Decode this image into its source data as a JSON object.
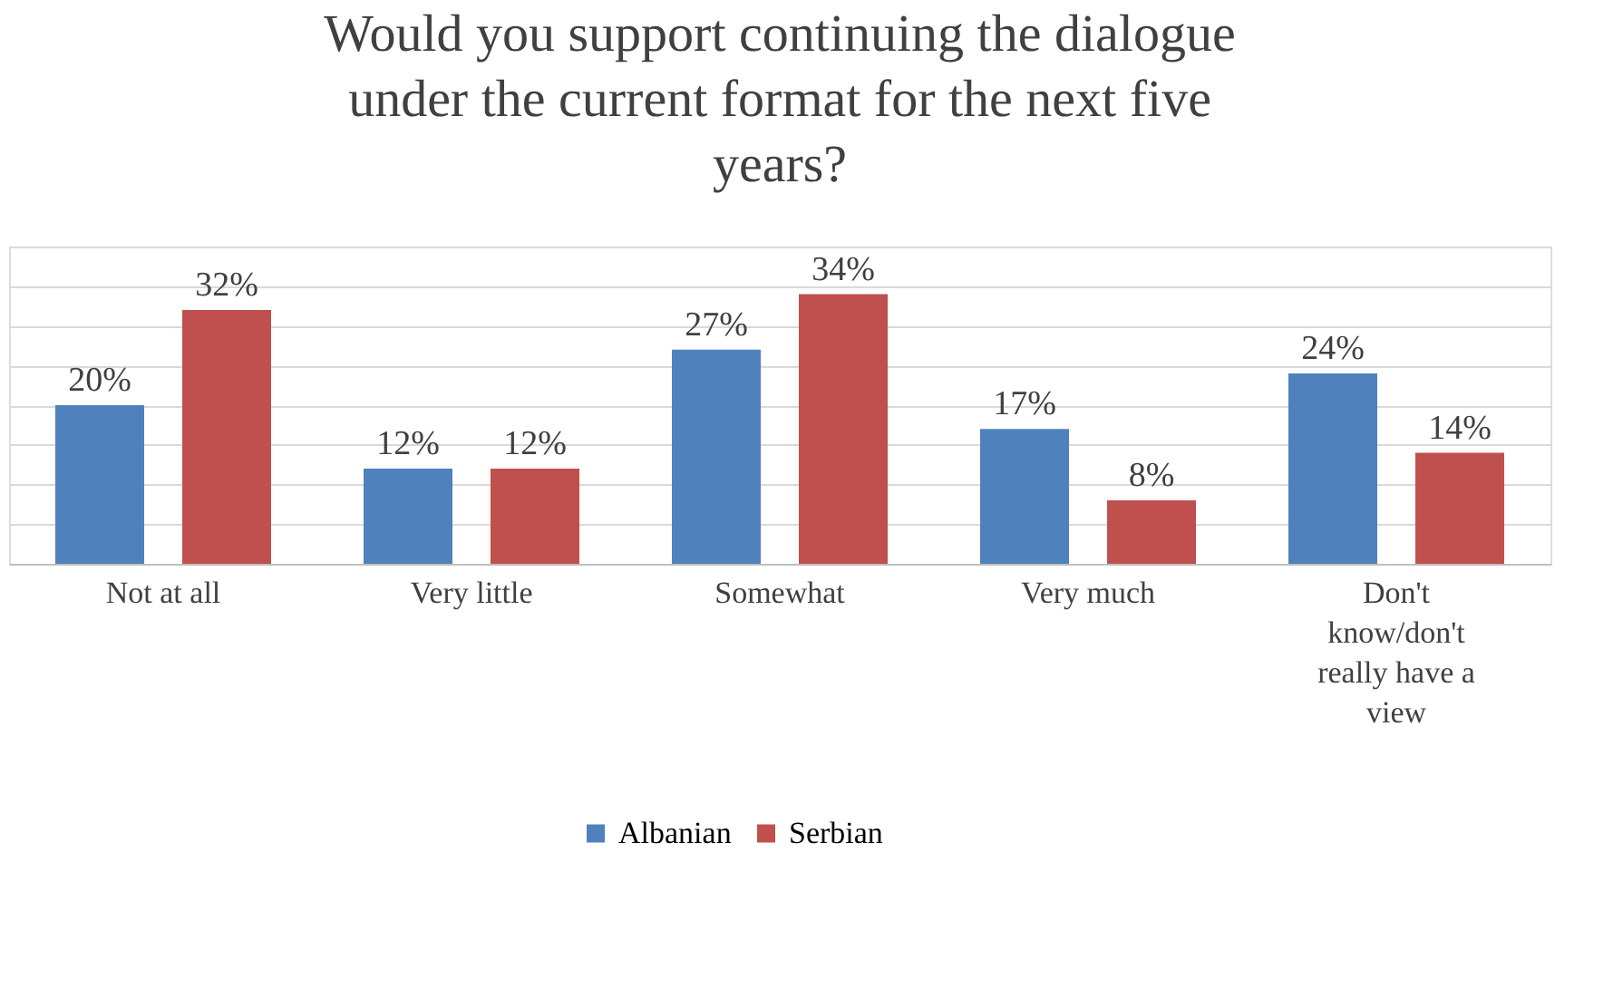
{
  "chart_data": {
    "type": "bar",
    "title": "Would you support continuing the dialogue under the current format for the next five years?",
    "categories": [
      "Not at all",
      "Very little",
      "Somewhat",
      "Very much",
      "Don't know/don't really have a view"
    ],
    "series": [
      {
        "name": "Albanian",
        "color": "#4f81bd",
        "values": [
          20,
          12,
          27,
          17,
          24
        ],
        "value_labels": [
          "20%",
          "12%",
          "27%",
          "17%",
          "24%"
        ]
      },
      {
        "name": "Serbian",
        "color": "#c0504d",
        "values": [
          32,
          12,
          34,
          8,
          14
        ],
        "value_labels": [
          "32%",
          "12%",
          "34%",
          "8%",
          "14%"
        ]
      }
    ],
    "ylim": [
      0,
      40
    ],
    "yticks": [
      {
        "value": 0,
        "label": null
      },
      {
        "value": 5,
        "label": null
      },
      {
        "value": 10,
        "label": null
      },
      {
        "value": 15,
        "label": null
      },
      {
        "value": 20,
        "label": null
      },
      {
        "value": 25,
        "label": null
      },
      {
        "value": 30,
        "label": null
      },
      {
        "value": 35,
        "label": null
      },
      {
        "value": 40,
        "label": null
      }
    ],
    "tick_labels": "x",
    "grid": "y",
    "legend": "bottom"
  }
}
